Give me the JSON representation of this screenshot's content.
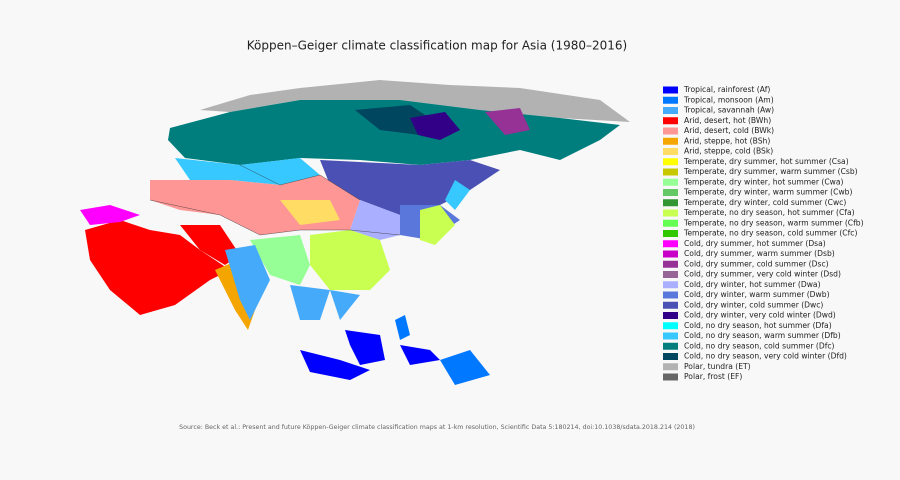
{
  "title": "Köppen–Geiger climate classification map for Asia (1980–2016)",
  "legend": [
    {
      "label": "Tropical, rainforest (Af)",
      "color": "#0000ff"
    },
    {
      "label": "Tropical, monsoon (Am)",
      "color": "#0078ff"
    },
    {
      "label": "Tropical, savannah (Aw)",
      "color": "#46aafa"
    },
    {
      "label": "Arid, desert, hot (BWh)",
      "color": "#ff0000"
    },
    {
      "label": "Arid, desert, cold (BWk)",
      "color": "#ff9696"
    },
    {
      "label": "Arid, steppe, hot (BSh)",
      "color": "#f5a500"
    },
    {
      "label": "Arid, steppe, cold (BSk)",
      "color": "#ffdc64"
    },
    {
      "label": "Temperate, dry summer, hot summer (Csa)",
      "color": "#ffff00"
    },
    {
      "label": "Temperate, dry summer, warm summer (Csb)",
      "color": "#c8c800"
    },
    {
      "label": "Temperate, dry winter, hot summer (Cwa)",
      "color": "#96ff96"
    },
    {
      "label": "Temperate, dry winter, warm summer (Cwb)",
      "color": "#64c864"
    },
    {
      "label": "Temperate, dry winter, cold summer (Cwc)",
      "color": "#329632"
    },
    {
      "label": "Temperate, no dry season, hot summer (Cfa)",
      "color": "#c8ff50"
    },
    {
      "label": "Temperate, no dry season, warm summer (Cfb)",
      "color": "#64ff50"
    },
    {
      "label": "Temperate, no dry season, cold summer (Cfc)",
      "color": "#32c800"
    },
    {
      "label": "Cold, dry summer, hot summer (Dsa)",
      "color": "#ff00ff"
    },
    {
      "label": "Cold, dry summer, warm summer (Dsb)",
      "color": "#c800c8"
    },
    {
      "label": "Cold, dry summer, cold summer (Dsc)",
      "color": "#963296"
    },
    {
      "label": "Cold, dry summer, very cold winter (Dsd)",
      "color": "#966496"
    },
    {
      "label": "Cold, dry winter, hot summer (Dwa)",
      "color": "#aaafff"
    },
    {
      "label": "Cold, dry winter, warm summer (Dwb)",
      "color": "#5a78dc"
    },
    {
      "label": "Cold, dry winter, cold summer (Dwc)",
      "color": "#4b50b4"
    },
    {
      "label": "Cold, dry winter, very cold winter (Dwd)",
      "color": "#320087"
    },
    {
      "label": "Cold, no dry season, hot summer (Dfa)",
      "color": "#00ffff"
    },
    {
      "label": "Cold, no dry season, warm summer (Dfb)",
      "color": "#37c8ff"
    },
    {
      "label": "Cold, no dry season, cold summer (Dfc)",
      "color": "#007d7d"
    },
    {
      "label": "Cold, no dry season, very cold winter (Dfd)",
      "color": "#00465f"
    },
    {
      "label": "Polar, tundra (ET)",
      "color": "#b2b2b2"
    },
    {
      "label": "Polar, frost (EF)",
      "color": "#666666"
    }
  ],
  "source": "Source: Beck et al.: Present and future Köppen-Geiger climate classification maps at 1-km resolution, Scientific Data 5:180214, doi:10.1038/sdata.2018.214 (2018)"
}
